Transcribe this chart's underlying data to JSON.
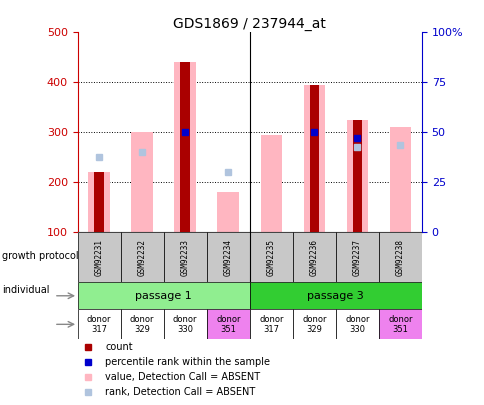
{
  "title": "GDS1869 / 237944_at",
  "samples": [
    "GSM92231",
    "GSM92232",
    "GSM92233",
    "GSM92234",
    "GSM92235",
    "GSM92236",
    "GSM92237",
    "GSM92238"
  ],
  "count_values": [
    220,
    null,
    440,
    null,
    null,
    395,
    325,
    null
  ],
  "value_absent": [
    220,
    300,
    440,
    180,
    295,
    395,
    325,
    310
  ],
  "rank_absent": [
    250,
    260,
    null,
    220,
    null,
    null,
    270,
    275
  ],
  "percentile_rank": [
    null,
    null,
    300,
    null,
    null,
    300,
    288,
    null
  ],
  "ylim": [
    100,
    500
  ],
  "yticks_left": [
    100,
    200,
    300,
    400,
    500
  ],
  "right_yticks": [
    0,
    25,
    50,
    75,
    100
  ],
  "right_ylim": [
    0,
    100
  ],
  "individuals": [
    "donor\n317",
    "donor\n329",
    "donor\n330",
    "donor\n351",
    "donor\n317",
    "donor\n329",
    "donor\n330",
    "donor\n351"
  ],
  "ind_colors": [
    "#ffffff",
    "#ffffff",
    "#ffffff",
    "#ee82ee",
    "#ffffff",
    "#ffffff",
    "#ffffff",
    "#ee82ee"
  ],
  "count_color": "#aa0000",
  "value_absent_color": "#ffb6c1",
  "rank_absent_color": "#b0c4de",
  "percentile_color": "#0000cc",
  "passage1_color": "#90ee90",
  "passage3_color": "#32cd32",
  "left_axis_color": "#cc0000",
  "right_axis_color": "#0000cc",
  "sample_box_color": "#c8c8c8",
  "legend_items": [
    [
      "#aa0000",
      "count"
    ],
    [
      "#0000cc",
      "percentile rank within the sample"
    ],
    [
      "#ffb6c1",
      "value, Detection Call = ABSENT"
    ],
    [
      "#b0c4de",
      "rank, Detection Call = ABSENT"
    ]
  ]
}
